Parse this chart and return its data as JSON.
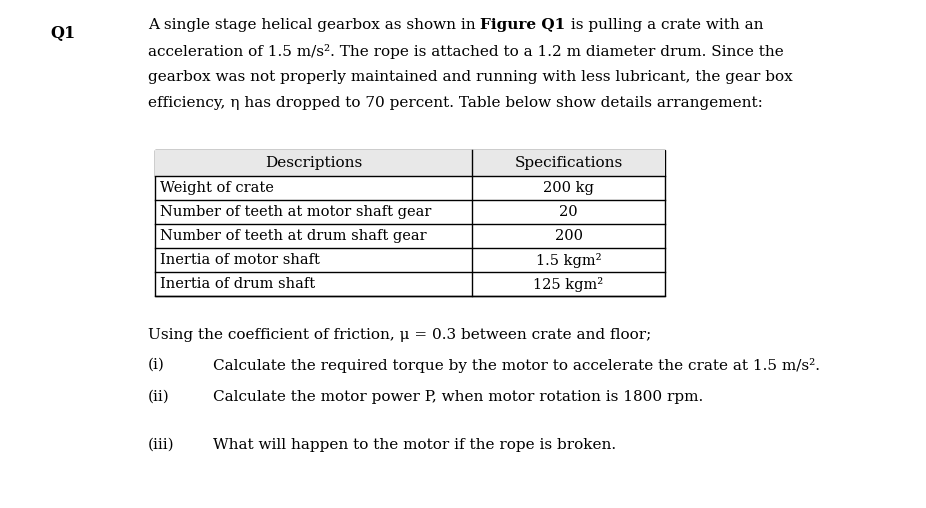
{
  "q_label": "Q1",
  "para_line1": "A single stage helical gearbox as shown in ",
  "para_line1_bold": "Figure Q1",
  "para_line1_end": " is pulling a crate with an",
  "para_line2": "acceleration of 1.5 m/s². The rope is attached to a 1.2 m diameter drum. Since the",
  "para_line3": "gearbox was not properly maintained and running with less lubricant, the gear box",
  "para_line4": "efficiency, η has dropped to 70 percent. Table below show details arrangement:",
  "table_headers": [
    "Descriptions",
    "Specifications"
  ],
  "table_rows": [
    [
      "Weight of crate",
      "200 kg"
    ],
    [
      "Number of teeth at motor shaft gear",
      "20"
    ],
    [
      "Number of teeth at drum shaft gear",
      "200"
    ],
    [
      "Inertia of motor shaft",
      "1.5 kgm²"
    ],
    [
      "Inertia of drum shaft",
      "125 kgm²"
    ]
  ],
  "friction_line": "Using the coefficient of friction, μ = 0.3 between crate and floor;",
  "parts": [
    [
      "(i)",
      "Calculate the required torque by the motor to accelerate the crate at 1.5 m/s²."
    ],
    [
      "(ii)",
      "Calculate the motor power P, when motor rotation is 1800 rpm."
    ],
    [
      "(iii)",
      "What will happen to the motor if the rope is broken."
    ]
  ],
  "bg_color": "#ffffff",
  "font_size": 11,
  "table_header_bg": "#e8e8e8",
  "fig_width": 9.26,
  "fig_height": 5.08,
  "dpi": 100
}
